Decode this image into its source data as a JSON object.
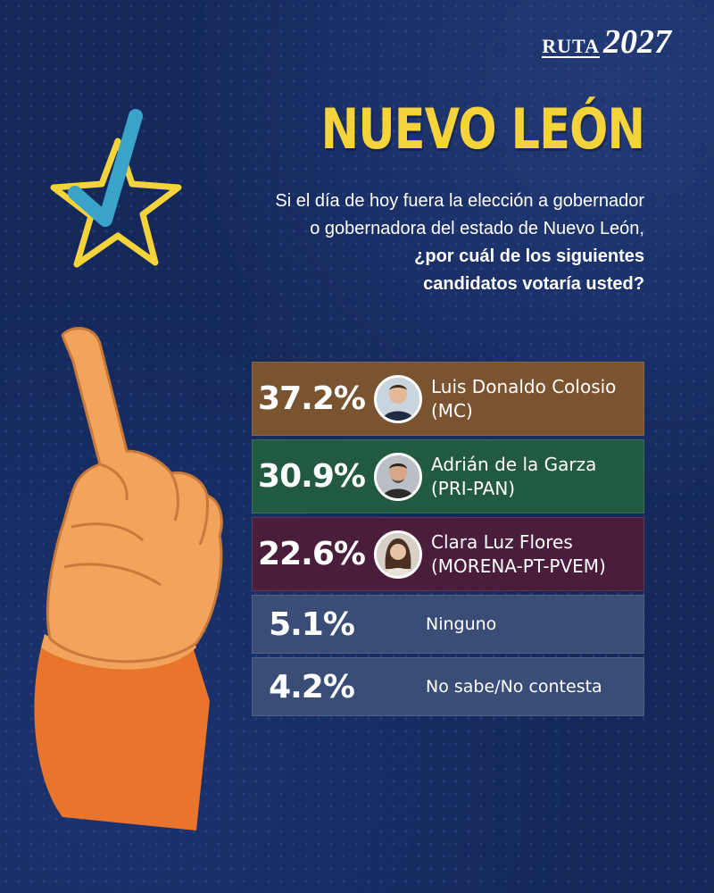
{
  "brand": {
    "ruta": "RUTA",
    "year": "2027"
  },
  "title": "NUEVO LEÓN",
  "question": {
    "line1": "Si el día de hoy fuera la elección a gobernador",
    "line2": "o gobernadora del estado de Nuevo León,",
    "bold1": "¿por cuál de los siguientes",
    "bold2": "candidatos votaría usted?"
  },
  "colors": {
    "background": "#14285a",
    "title": "#f5d33a",
    "star": "#f5d33a",
    "check": "#3aa3c9",
    "hand": "#f2a35c",
    "sleeve": "#e8752b"
  },
  "chart_data": {
    "type": "table",
    "rows": [
      {
        "pct": "37.2%",
        "value": 37.2,
        "name": "Luis Donaldo Colosio",
        "party": "(MC)",
        "color": "#7a5330",
        "avatar_icon": "candidate-photo"
      },
      {
        "pct": "30.9%",
        "value": 30.9,
        "name": "Adrián de la Garza",
        "party": "(PRI-PAN)",
        "color": "#215a41",
        "avatar_icon": "candidate-photo"
      },
      {
        "pct": "22.6%",
        "value": 22.6,
        "name": "Clara Luz Flores",
        "party": "(MORENA-PT-PVEM)",
        "color": "#4a1e3a",
        "avatar_icon": "candidate-photo"
      },
      {
        "pct": "5.1%",
        "value": 5.1,
        "name": "Ninguno",
        "party": "",
        "color": "#3a4d76"
      },
      {
        "pct": "4.2%",
        "value": 4.2,
        "name": "No sabe/No contesta",
        "party": "",
        "color": "#3a4d76"
      }
    ]
  }
}
